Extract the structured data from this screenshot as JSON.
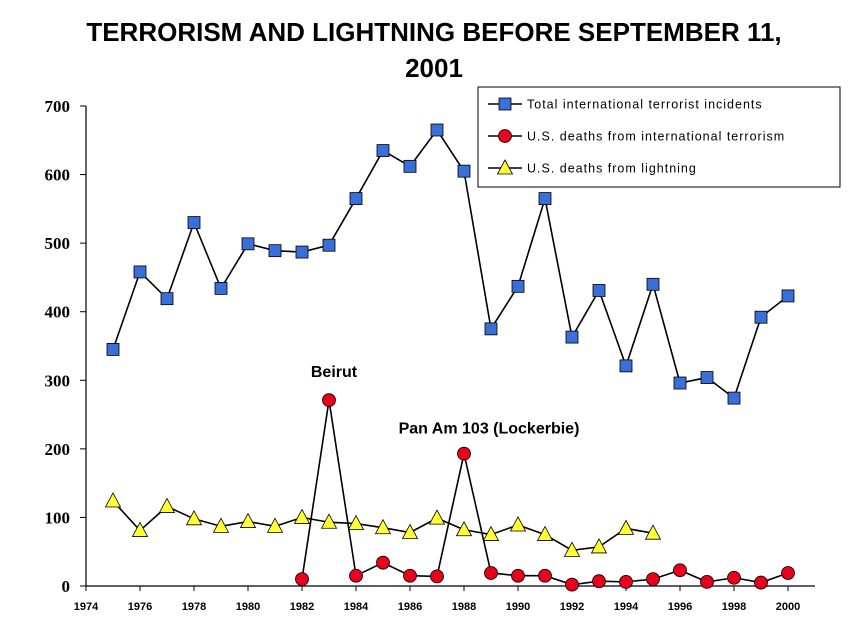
{
  "chart_data": {
    "type": "line",
    "title_lines": [
      "TERRORISM AND LIGHTNING BEFORE SEPTEMBER 11,",
      "2001"
    ],
    "xlim": [
      1974,
      2001
    ],
    "ylim": [
      0,
      700
    ],
    "x_ticks": [
      1974,
      1976,
      1978,
      1980,
      1982,
      1984,
      1986,
      1988,
      1990,
      1992,
      1994,
      1996,
      1998,
      2000
    ],
    "y_ticks": [
      0,
      100,
      200,
      300,
      400,
      500,
      600,
      700
    ],
    "grid": false,
    "legend_position": "top-right",
    "series": [
      {
        "name": "Total international terrorist incidents",
        "marker": "square",
        "color": "#3A6FD8",
        "x": [
          1975,
          1976,
          1977,
          1978,
          1979,
          1980,
          1981,
          1982,
          1983,
          1984,
          1985,
          1986,
          1987,
          1988,
          1989,
          1990,
          1991,
          1992,
          1993,
          1994,
          1995,
          1996,
          1997,
          1998,
          1999,
          2000
        ],
        "values": [
          345,
          458,
          419,
          530,
          434,
          499,
          489,
          487,
          497,
          565,
          635,
          612,
          665,
          605,
          375,
          437,
          565,
          363,
          431,
          321,
          440,
          296,
          304,
          274,
          392,
          423
        ]
      },
      {
        "name": "U.S. deaths from international terrorism",
        "marker": "circle",
        "color": "#E8001C",
        "x": [
          1982,
          1983,
          1984,
          1985,
          1986,
          1987,
          1988,
          1989,
          1990,
          1991,
          1992,
          1993,
          1994,
          1995,
          1996,
          1997,
          1998,
          1999,
          2000
        ],
        "values": [
          10,
          271,
          15,
          34,
          15,
          14,
          193,
          19,
          15,
          15,
          2,
          7,
          6,
          10,
          23,
          6,
          12,
          5,
          19
        ]
      },
      {
        "name": "U.S. deaths from lightning",
        "marker": "triangle",
        "color": "#FFFF33",
        "x": [
          1975,
          1976,
          1977,
          1978,
          1979,
          1980,
          1981,
          1982,
          1983,
          1984,
          1985,
          1986,
          1987,
          1988,
          1989,
          1990,
          1991,
          1992,
          1993,
          1994,
          1995
        ],
        "values": [
          124,
          81,
          116,
          98,
          87,
          94,
          87,
          100,
          93,
          91,
          85,
          78,
          99,
          82,
          75,
          89,
          75,
          52,
          57,
          84,
          77
        ]
      }
    ],
    "annotations": [
      {
        "text": "Beirut",
        "x": 1983,
        "y": 271
      },
      {
        "text": "Pan Am 103 (Lockerbie)",
        "x": 1988,
        "y": 193
      }
    ]
  }
}
